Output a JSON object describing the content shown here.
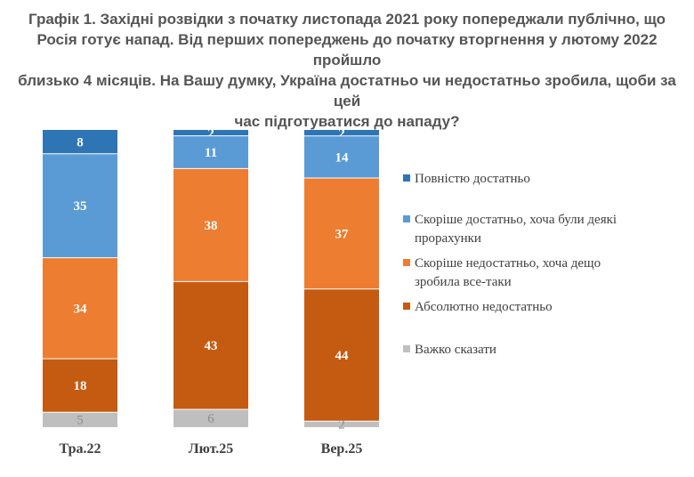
{
  "title_lines": [
    "Графік 1. Західні розвідки з початку листопада 2021 року попереджали публічно, що",
    "Росія готує напад. Від перших попереджень до початку вторгнення у лютому 2022 пройшло",
    "близько 4 місяців. На Вашу думку, Україна достатньо чи недостатньо зробила, щоби за цей",
    "час підготуватися до нападу?"
  ],
  "chart_data": {
    "type": "bar",
    "stacked": true,
    "percent": true,
    "title": "Графік 1. Західні розвідки з початку листопада 2021 року попереджали публічно, що Росія готує напад. Від перших попереджень до початку вторгнення у лютому 2022 пройшло близько 4 місяців. На Вашу думку, Україна достатньо чи недостатньо зробила, щоби за цей час підготуватися до нападу?",
    "categories": [
      "Тра.22",
      "Лют.25",
      "Вер.25"
    ],
    "series": [
      {
        "name": "Повністю достатньо",
        "color": "#2e75b6",
        "values": [
          8,
          2,
          2
        ]
      },
      {
        "name": "Скоріше достатньо, хоча були деякі прорахунки",
        "color": "#5b9bd5",
        "values": [
          35,
          11,
          14
        ]
      },
      {
        "name": "Скоріше недостатньо, хоча дещо зробила все-таки",
        "color": "#ed7d31",
        "values": [
          34,
          38,
          37
        ]
      },
      {
        "name": "Абсолютно недостатньо",
        "color": "#c55a11",
        "values": [
          18,
          43,
          44
        ]
      },
      {
        "name": "Важко сказати",
        "color": "#bfbfbf",
        "values": [
          5,
          6,
          2
        ]
      }
    ],
    "legend_items": [
      {
        "lines": [
          "Повністю достатньо"
        ]
      },
      {
        "lines": [
          "Скоріше достатньо, хоча були деякі",
          "прорахунки"
        ]
      },
      {
        "lines": [
          "Скоріше недостатньо, хоча дещо",
          "зробила все-таки"
        ]
      },
      {
        "lines": [
          "Абсолютно недостатньо"
        ]
      },
      {
        "lines": [
          "Важко сказати"
        ]
      }
    ],
    "legend_position": "right",
    "grid": false
  }
}
